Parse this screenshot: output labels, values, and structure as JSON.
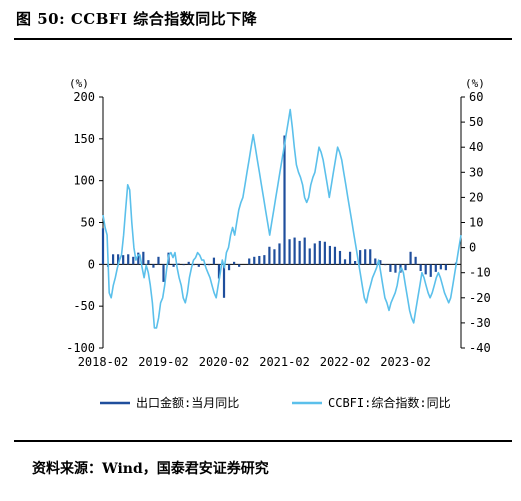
{
  "header": {
    "title": "图 50: CCBFI 综合指数同比下降"
  },
  "footer": {
    "source": "资料来源：Wind，国泰君安证券研究"
  },
  "chart_data": {
    "type": "line",
    "title": "图 50: CCBFI 综合指数同比下降",
    "left_axis": {
      "unit": "(%)",
      "ylim": [
        -100,
        200
      ],
      "ticks": [
        -100,
        -50,
        0,
        50,
        100,
        150,
        200
      ]
    },
    "right_axis": {
      "unit": "(%)",
      "ylim": [
        -40,
        60
      ],
      "ticks": [
        -40,
        -30,
        -20,
        -10,
        0,
        10,
        20,
        30,
        40,
        50,
        60
      ]
    },
    "x_ticks": [
      "2018-02",
      "2019-02",
      "2020-02",
      "2021-02",
      "2022-02",
      "2023-02"
    ],
    "grid": false,
    "legend_position": "bottom",
    "series": [
      {
        "name": "出口金额:当月同比",
        "axis": "left",
        "color": "#1f4e9c",
        "x": [
          "2018-02",
          "2018-03",
          "2018-04",
          "2018-05",
          "2018-06",
          "2018-07",
          "2018-08",
          "2018-09",
          "2018-10",
          "2018-11",
          "2018-12",
          "2019-01",
          "2019-02",
          "2019-03",
          "2019-04",
          "2019-05",
          "2019-06",
          "2019-07",
          "2019-08",
          "2019-09",
          "2019-10",
          "2019-11",
          "2019-12",
          "2020-01",
          "2020-02",
          "2020-03",
          "2020-04",
          "2020-05",
          "2020-06",
          "2020-07",
          "2020-08",
          "2020-09",
          "2020-10",
          "2020-11",
          "2020-12",
          "2021-01",
          "2021-02",
          "2021-03",
          "2021-04",
          "2021-05",
          "2021-06",
          "2021-07",
          "2021-08",
          "2021-09",
          "2021-10",
          "2021-11",
          "2021-12",
          "2022-01",
          "2022-02",
          "2022-03",
          "2022-04",
          "2022-05",
          "2022-06",
          "2022-07",
          "2022-08",
          "2022-09",
          "2022-10",
          "2022-11",
          "2022-12",
          "2023-01",
          "2023-02",
          "2023-03",
          "2023-04",
          "2023-05",
          "2023-06",
          "2023-07",
          "2023-08",
          "2023-09",
          "2023-10",
          "2023-11",
          "2023-12"
        ],
        "values": [
          43,
          -3,
          12,
          12,
          11,
          12,
          9,
          14,
          15,
          5,
          -4,
          9,
          -21,
          14,
          -3,
          1,
          -1,
          3,
          -1,
          -3,
          -1,
          -1,
          8,
          -17,
          -40,
          -7,
          3,
          -3,
          0,
          7,
          9,
          10,
          11,
          21,
          18,
          25,
          154,
          30,
          32,
          28,
          32,
          19,
          25,
          28,
          27,
          22,
          21,
          16,
          6,
          15,
          4,
          17,
          18,
          18,
          7,
          5,
          -1,
          -9,
          -10,
          -10,
          -7,
          15,
          9,
          -8,
          -12,
          -15,
          -9,
          -6,
          -7,
          0,
          2
        ]
      },
      {
        "name": "CCBFI:综合指数:同比",
        "axis": "right",
        "color": "#5bc0eb",
        "x_start": "2018-02",
        "x_end": "2023-12",
        "values": [
          13,
          8,
          5,
          -18,
          -20,
          -15,
          -12,
          -8,
          -5,
          -3,
          5,
          15,
          25,
          23,
          10,
          0,
          -5,
          -3,
          -3,
          -8,
          -12,
          -7,
          -10,
          -15,
          -22,
          -32,
          -32,
          -28,
          -22,
          -20,
          -15,
          -8,
          -3,
          -2,
          -4,
          -2,
          -8,
          -12,
          -15,
          -20,
          -22,
          -18,
          -12,
          -8,
          -5,
          -4,
          -2,
          -3,
          -5,
          -5,
          -8,
          -10,
          -12,
          -15,
          -18,
          -20,
          -15,
          -10,
          -5,
          -8,
          -2,
          0,
          5,
          8,
          5,
          10,
          15,
          18,
          20,
          25,
          30,
          35,
          40,
          45,
          40,
          35,
          30,
          25,
          20,
          15,
          10,
          5,
          10,
          15,
          20,
          25,
          30,
          35,
          40,
          45,
          50,
          55,
          48,
          40,
          33,
          30,
          28,
          25,
          20,
          18,
          20,
          25,
          28,
          30,
          35,
          40,
          38,
          35,
          30,
          25,
          20,
          25,
          30,
          35,
          40,
          38,
          35,
          30,
          25,
          20,
          15,
          10,
          5,
          0,
          -5,
          -10,
          -15,
          -20,
          -22,
          -18,
          -15,
          -12,
          -10,
          -8,
          -5,
          -10,
          -15,
          -20,
          -22,
          -25,
          -22,
          -20,
          -18,
          -15,
          -10,
          -8,
          -10,
          -15,
          -20,
          -25,
          -28,
          -30,
          -25,
          -20,
          -15,
          -10,
          -12,
          -15,
          -18,
          -20,
          -18,
          -15,
          -12,
          -10,
          -12,
          -15,
          -18,
          -20,
          -22,
          -20,
          -15,
          -10,
          -5,
          0,
          5
        ]
      }
    ]
  }
}
